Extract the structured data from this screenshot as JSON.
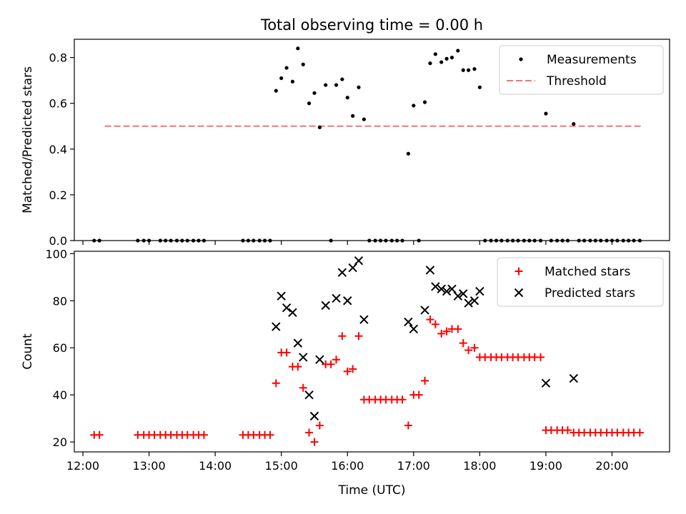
{
  "chart_data": [
    {
      "type": "scatter",
      "title": "Total observing time = 0.00 h",
      "xlabel": "",
      "ylabel": "Matched/Predicted stars",
      "xlim": [
        11.87,
        20.87
      ],
      "ylim": [
        0,
        0.88
      ],
      "yticks": [
        0.0,
        0.2,
        0.4,
        0.6,
        0.8
      ],
      "ytick_labels": [
        "0.0",
        "0.2",
        "0.4",
        "0.6",
        "0.8"
      ],
      "legend_position": "top-right",
      "legend": [
        {
          "label": "Measurements",
          "marker": "dot",
          "color": "#000000"
        },
        {
          "label": "Threshold",
          "marker": "dashed-line",
          "color": "#ff7070"
        }
      ],
      "threshold": {
        "x": [
          12.33,
          20.45
        ],
        "y": 0.5,
        "color": "#ff7070"
      },
      "series": [
        {
          "marker": "dot",
          "color": "#000000",
          "points": [
            [
              12.17,
              0
            ],
            [
              12.25,
              0
            ],
            [
              12.83,
              0
            ],
            [
              12.92,
              0
            ],
            [
              13.0,
              0
            ],
            [
              13.17,
              0
            ],
            [
              13.25,
              0
            ],
            [
              13.33,
              0
            ],
            [
              13.42,
              0
            ],
            [
              13.5,
              0
            ],
            [
              13.58,
              0
            ],
            [
              13.67,
              0
            ],
            [
              13.75,
              0
            ],
            [
              13.83,
              0
            ],
            [
              14.42,
              0
            ],
            [
              14.5,
              0
            ],
            [
              14.58,
              0
            ],
            [
              14.67,
              0
            ],
            [
              14.75,
              0
            ],
            [
              14.83,
              0
            ],
            [
              14.92,
              0.655
            ],
            [
              15.0,
              0.71
            ],
            [
              15.08,
              0.755
            ],
            [
              15.17,
              0.695
            ],
            [
              15.25,
              0.84
            ],
            [
              15.33,
              0.77
            ],
            [
              15.42,
              0.6
            ],
            [
              15.5,
              0.645
            ],
            [
              15.58,
              0.495
            ],
            [
              15.67,
              0.68
            ],
            [
              15.75,
              0
            ],
            [
              15.83,
              0.68
            ],
            [
              15.92,
              0.705
            ],
            [
              16.0,
              0.625
            ],
            [
              16.08,
              0.545
            ],
            [
              16.17,
              0.67
            ],
            [
              16.25,
              0.53
            ],
            [
              16.33,
              0
            ],
            [
              16.42,
              0
            ],
            [
              16.5,
              0
            ],
            [
              16.58,
              0
            ],
            [
              16.67,
              0
            ],
            [
              16.75,
              0
            ],
            [
              16.83,
              0
            ],
            [
              16.92,
              0.38
            ],
            [
              17.0,
              0.59
            ],
            [
              17.08,
              0
            ],
            [
              17.17,
              0.605
            ],
            [
              17.25,
              0.775
            ],
            [
              17.33,
              0.815
            ],
            [
              17.42,
              0.78
            ],
            [
              17.5,
              0.795
            ],
            [
              17.58,
              0.8
            ],
            [
              17.67,
              0.83
            ],
            [
              17.75,
              0.745
            ],
            [
              17.83,
              0.745
            ],
            [
              17.92,
              0.75
            ],
            [
              18.0,
              0.67
            ],
            [
              18.08,
              0
            ],
            [
              18.17,
              0
            ],
            [
              18.25,
              0
            ],
            [
              18.33,
              0
            ],
            [
              18.42,
              0
            ],
            [
              18.5,
              0
            ],
            [
              18.58,
              0
            ],
            [
              18.67,
              0
            ],
            [
              18.75,
              0
            ],
            [
              18.83,
              0
            ],
            [
              18.92,
              0
            ],
            [
              19.0,
              0.555
            ],
            [
              19.08,
              0
            ],
            [
              19.17,
              0
            ],
            [
              19.25,
              0
            ],
            [
              19.33,
              0
            ],
            [
              19.42,
              0.51
            ],
            [
              19.5,
              0
            ],
            [
              19.58,
              0
            ],
            [
              19.67,
              0
            ],
            [
              19.75,
              0
            ],
            [
              19.83,
              0
            ],
            [
              19.92,
              0
            ],
            [
              20.0,
              0
            ],
            [
              20.08,
              0
            ],
            [
              20.17,
              0
            ],
            [
              20.25,
              0
            ],
            [
              20.33,
              0
            ],
            [
              20.42,
              0
            ]
          ]
        }
      ]
    },
    {
      "type": "scatter",
      "title": "",
      "xlabel": "Time (UTC)",
      "ylabel": "Count",
      "xlim": [
        11.87,
        20.87
      ],
      "ylim": [
        15.8,
        101
      ],
      "yticks": [
        20,
        40,
        60,
        80,
        100
      ],
      "ytick_labels": [
        "20",
        "40",
        "60",
        "80",
        "100"
      ],
      "xticks": [
        12,
        13,
        14,
        15,
        16,
        17,
        18,
        19,
        20
      ],
      "xtick_labels": [
        "12:00",
        "13:00",
        "14:00",
        "15:00",
        "16:00",
        "17:00",
        "18:00",
        "19:00",
        "20:00"
      ],
      "legend_position": "top-right",
      "legend": [
        {
          "label": "Matched stars",
          "marker": "plus",
          "color": "#ff0000"
        },
        {
          "label": "Predicted stars",
          "marker": "x",
          "color": "#000000"
        }
      ],
      "series": [
        {
          "marker": "plus",
          "color": "#ff0000",
          "points": [
            [
              12.17,
              23
            ],
            [
              12.25,
              23
            ],
            [
              12.83,
              23
            ],
            [
              12.92,
              23
            ],
            [
              13.0,
              23
            ],
            [
              13.08,
              23
            ],
            [
              13.17,
              23
            ],
            [
              13.25,
              23
            ],
            [
              13.33,
              23
            ],
            [
              13.42,
              23
            ],
            [
              13.5,
              23
            ],
            [
              13.58,
              23
            ],
            [
              13.67,
              23
            ],
            [
              13.75,
              23
            ],
            [
              13.83,
              23
            ],
            [
              14.42,
              23
            ],
            [
              14.5,
              23
            ],
            [
              14.58,
              23
            ],
            [
              14.67,
              23
            ],
            [
              14.75,
              23
            ],
            [
              14.83,
              23
            ],
            [
              14.92,
              45
            ],
            [
              15.0,
              58
            ],
            [
              15.08,
              58
            ],
            [
              15.17,
              52
            ],
            [
              15.25,
              52
            ],
            [
              15.33,
              43
            ],
            [
              15.42,
              24
            ],
            [
              15.5,
              20
            ],
            [
              15.58,
              27
            ],
            [
              15.67,
              53
            ],
            [
              15.75,
              53
            ],
            [
              15.83,
              55
            ],
            [
              15.92,
              65
            ],
            [
              16.0,
              50
            ],
            [
              16.08,
              51
            ],
            [
              16.17,
              65
            ],
            [
              16.25,
              38
            ],
            [
              16.33,
              38
            ],
            [
              16.42,
              38
            ],
            [
              16.5,
              38
            ],
            [
              16.58,
              38
            ],
            [
              16.67,
              38
            ],
            [
              16.75,
              38
            ],
            [
              16.83,
              38
            ],
            [
              16.92,
              27
            ],
            [
              17.0,
              40
            ],
            [
              17.08,
              40
            ],
            [
              17.17,
              46
            ],
            [
              17.25,
              72
            ],
            [
              17.33,
              70
            ],
            [
              17.42,
              66
            ],
            [
              17.5,
              67
            ],
            [
              17.58,
              68
            ],
            [
              17.67,
              68
            ],
            [
              17.75,
              62
            ],
            [
              17.83,
              59
            ],
            [
              17.92,
              60
            ],
            [
              18.0,
              56
            ],
            [
              18.08,
              56
            ],
            [
              18.17,
              56
            ],
            [
              18.25,
              56
            ],
            [
              18.33,
              56
            ],
            [
              18.42,
              56
            ],
            [
              18.5,
              56
            ],
            [
              18.58,
              56
            ],
            [
              18.67,
              56
            ],
            [
              18.75,
              56
            ],
            [
              18.83,
              56
            ],
            [
              18.92,
              56
            ],
            [
              19.0,
              25
            ],
            [
              19.08,
              25
            ],
            [
              19.17,
              25
            ],
            [
              19.25,
              25
            ],
            [
              19.33,
              25
            ],
            [
              19.42,
              24
            ],
            [
              19.5,
              24
            ],
            [
              19.58,
              24
            ],
            [
              19.67,
              24
            ],
            [
              19.75,
              24
            ],
            [
              19.83,
              24
            ],
            [
              19.92,
              24
            ],
            [
              20.0,
              24
            ],
            [
              20.08,
              24
            ],
            [
              20.17,
              24
            ],
            [
              20.25,
              24
            ],
            [
              20.33,
              24
            ],
            [
              20.42,
              24
            ]
          ]
        },
        {
          "marker": "x",
          "color": "#000000",
          "points": [
            [
              14.92,
              69
            ],
            [
              15.0,
              82
            ],
            [
              15.08,
              77
            ],
            [
              15.17,
              75
            ],
            [
              15.25,
              62
            ],
            [
              15.33,
              56
            ],
            [
              15.42,
              40
            ],
            [
              15.5,
              31
            ],
            [
              15.58,
              55
            ],
            [
              15.67,
              78
            ],
            [
              15.83,
              81
            ],
            [
              15.92,
              92
            ],
            [
              16.0,
              80
            ],
            [
              16.08,
              94
            ],
            [
              16.17,
              97
            ],
            [
              16.25,
              72
            ],
            [
              16.92,
              71
            ],
            [
              17.0,
              68
            ],
            [
              17.17,
              76
            ],
            [
              17.25,
              93
            ],
            [
              17.33,
              86
            ],
            [
              17.42,
              85
            ],
            [
              17.5,
              84
            ],
            [
              17.58,
              85
            ],
            [
              17.67,
              82
            ],
            [
              17.75,
              83
            ],
            [
              17.83,
              79
            ],
            [
              17.92,
              80
            ],
            [
              18.0,
              84
            ],
            [
              19.0,
              45
            ],
            [
              19.42,
              47
            ]
          ]
        }
      ]
    }
  ]
}
